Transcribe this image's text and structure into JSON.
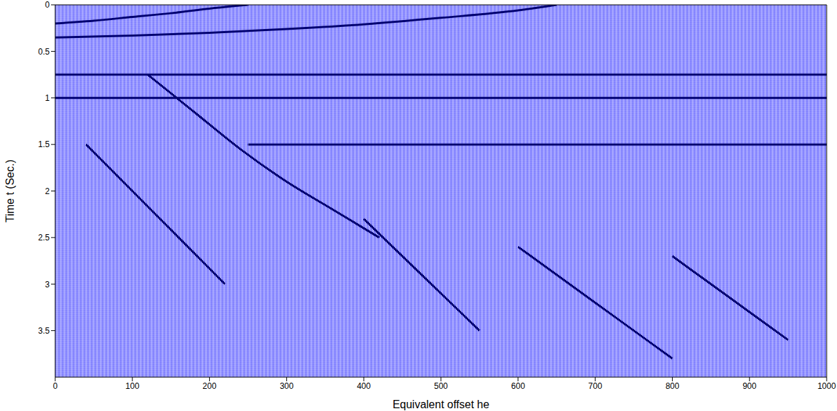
{
  "chart_data": {
    "type": "line",
    "x_label": "Equivalent offset he",
    "y_label": "Time t (Sec.)",
    "xlim": [
      0,
      1000
    ],
    "xticks": [
      0,
      100,
      200,
      300,
      400,
      500,
      600,
      700,
      800,
      900,
      1000
    ],
    "ylim": [
      0,
      4
    ],
    "yticks": [
      0,
      0.5,
      1,
      1.5,
      2,
      2.5,
      3,
      3.5
    ],
    "grid": false,
    "series": [
      {
        "color": "#000070",
        "x": [
          0,
          50,
          100,
          150,
          200,
          250
        ],
        "values": [
          0.2,
          0.17,
          0.13,
          0.09,
          0.04,
          0.0
        ]
      },
      {
        "color": "#000070",
        "x": [
          0,
          100,
          200,
          300,
          400,
          500,
          600,
          650
        ],
        "values": [
          0.35,
          0.33,
          0.3,
          0.26,
          0.21,
          0.14,
          0.06,
          0.0
        ]
      },
      {
        "color": "#000070",
        "x": [
          0,
          1000
        ],
        "values": [
          0.75,
          0.75
        ]
      },
      {
        "color": "#000070",
        "x": [
          0,
          1000
        ],
        "values": [
          1.0,
          1.0
        ]
      },
      {
        "color": "#000070",
        "x": [
          250,
          1000
        ],
        "values": [
          1.5,
          1.5
        ]
      },
      {
        "color": "#000070",
        "x": [
          120,
          180,
          240,
          300,
          360,
          420
        ],
        "values": [
          0.75,
          1.15,
          1.55,
          1.9,
          2.2,
          2.5
        ]
      },
      {
        "color": "#000070",
        "x": [
          40,
          100,
          160,
          220
        ],
        "values": [
          1.5,
          2.0,
          2.5,
          3.0
        ]
      },
      {
        "color": "#000070",
        "x": [
          400,
          450,
          500,
          550
        ],
        "values": [
          2.3,
          2.7,
          3.1,
          3.5
        ]
      },
      {
        "color": "#000070",
        "x": [
          600,
          650,
          700,
          750,
          800
        ],
        "values": [
          2.6,
          2.9,
          3.2,
          3.5,
          3.8
        ]
      },
      {
        "color": "#000070",
        "x": [
          800,
          850,
          900,
          950
        ],
        "values": [
          2.7,
          3.0,
          3.3,
          3.6
        ]
      }
    ]
  }
}
